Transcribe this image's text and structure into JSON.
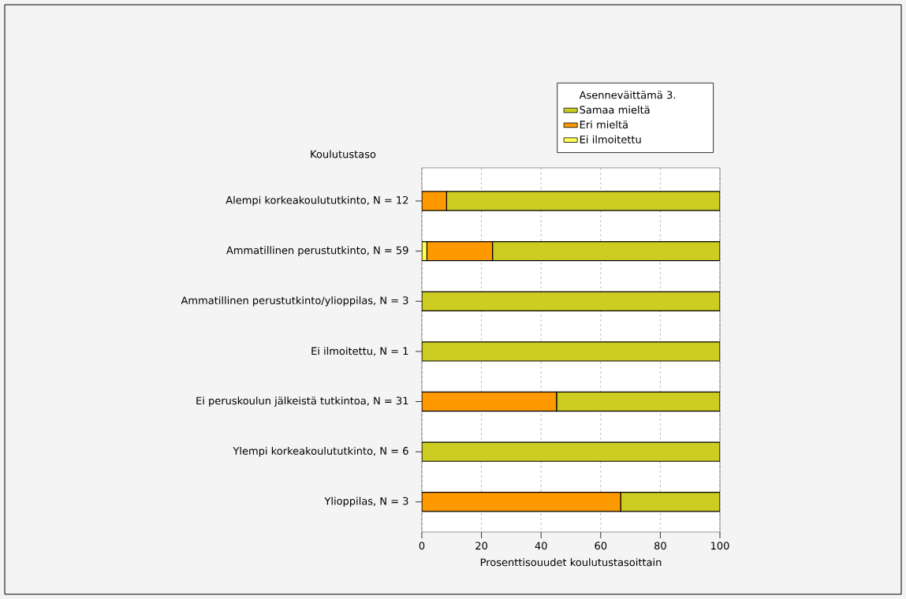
{
  "chart_data": {
    "type": "bar",
    "orientation": "horizontal",
    "stacked": true,
    "ylabel": "Koulutustaso",
    "xlabel": "Prosenttisouudet koulutustasoittain",
    "legend_title": "Asenneväittämä 3.",
    "categories": [
      "Alempi korkeakoulututkinto, N = 12",
      "Ammatillinen perustutkinto, N = 59",
      "Ammatillinen perustutkinto/ylioppilas, N = 3",
      "Ei ilmoitettu, N = 1",
      "Ei peruskoulun jälkeistä tutkintoa, N = 31",
      "Ylempi korkeakoulututkinto, N = 6",
      "Ylioppilas, N = 3"
    ],
    "series": [
      {
        "name": "Ei ilmoitettu",
        "color": "#ffff55",
        "values": [
          0,
          1.7,
          0,
          0,
          0,
          0,
          0
        ]
      },
      {
        "name": "Eri mieltä",
        "color": "#ff9900",
        "values": [
          8.3,
          22,
          0,
          0,
          45.2,
          0,
          66.7
        ]
      },
      {
        "name": "Samaa mieltä",
        "color": "#cccc22",
        "values": [
          91.7,
          76.3,
          100,
          100,
          54.8,
          100,
          33.3
        ]
      }
    ],
    "xlim": [
      0,
      100
    ],
    "xticks": [
      0,
      20,
      40,
      60,
      80,
      100
    ],
    "grid": "x",
    "legend": "top"
  }
}
